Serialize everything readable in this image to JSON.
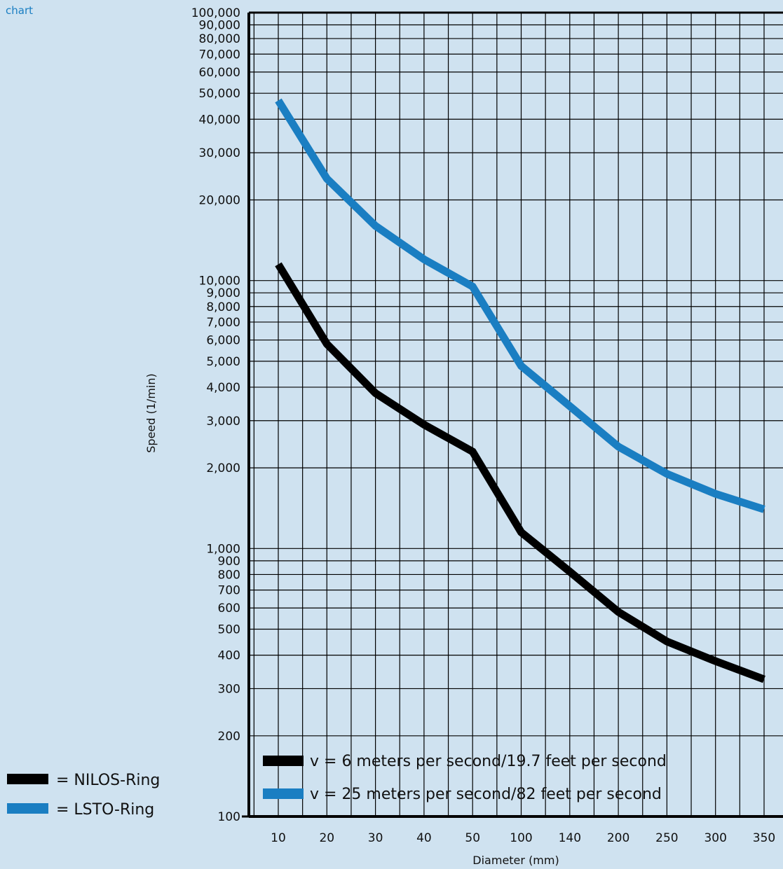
{
  "corner_label": "chart",
  "colors": {
    "nilos": "#000000",
    "lsto": "#1a7ec2",
    "background": "#cfe2f0",
    "grid": "#000000"
  },
  "chart_data": {
    "type": "line",
    "yscale": "log",
    "ylim": [
      100,
      100000
    ],
    "xlabel": "Diameter (mm)",
    "ylabel": "Speed (1/min)",
    "categories": [
      "10",
      "20",
      "30",
      "40",
      "50",
      "100",
      "140",
      "200",
      "250",
      "300",
      "350"
    ],
    "y_ticks": [
      {
        "value": 100,
        "label": "100"
      },
      {
        "value": 200,
        "label": "200"
      },
      {
        "value": 300,
        "label": "300"
      },
      {
        "value": 400,
        "label": "400"
      },
      {
        "value": 500,
        "label": "500"
      },
      {
        "value": 600,
        "label": "600"
      },
      {
        "value": 700,
        "label": "700"
      },
      {
        "value": 800,
        "label": "800"
      },
      {
        "value": 900,
        "label": "900"
      },
      {
        "value": 1000,
        "label": "1,000"
      },
      {
        "value": 2000,
        "label": "2,000"
      },
      {
        "value": 3000,
        "label": "3,000"
      },
      {
        "value": 4000,
        "label": "4,000"
      },
      {
        "value": 5000,
        "label": "5,000"
      },
      {
        "value": 6000,
        "label": "6,000"
      },
      {
        "value": 7000,
        "label": "7,000"
      },
      {
        "value": 8000,
        "label": "8,000"
      },
      {
        "value": 9000,
        "label": "9,000"
      },
      {
        "value": 10000,
        "label": "10,000"
      },
      {
        "value": 20000,
        "label": "20,000"
      },
      {
        "value": 30000,
        "label": "30,000"
      },
      {
        "value": 40000,
        "label": "40,000"
      },
      {
        "value": 50000,
        "label": "50,000"
      },
      {
        "value": 60000,
        "label": "60,000"
      },
      {
        "value": 70000,
        "label": "70,000"
      },
      {
        "value": 80000,
        "label": "80,000"
      },
      {
        "value": 90000,
        "label": "90,000"
      },
      {
        "value": 100000,
        "label": "100,000"
      }
    ],
    "series": [
      {
        "key": "nilos",
        "legend": "v =  6 meters per second/19.7 feet per second",
        "values": [
          11500,
          5800,
          3800,
          2900,
          2300,
          1150,
          820,
          580,
          450,
          380,
          325
        ]
      },
      {
        "key": "lsto",
        "legend": "v =  25 meters per second/82 feet per second",
        "values": [
          47000,
          24000,
          16000,
          12000,
          9500,
          4800,
          3400,
          2400,
          1900,
          1600,
          1400
        ]
      }
    ],
    "side_legend": [
      {
        "key": "nilos",
        "label": "= NILOS-Ring"
      },
      {
        "key": "lsto",
        "label": "= LSTO-Ring"
      }
    ],
    "grid": true
  }
}
